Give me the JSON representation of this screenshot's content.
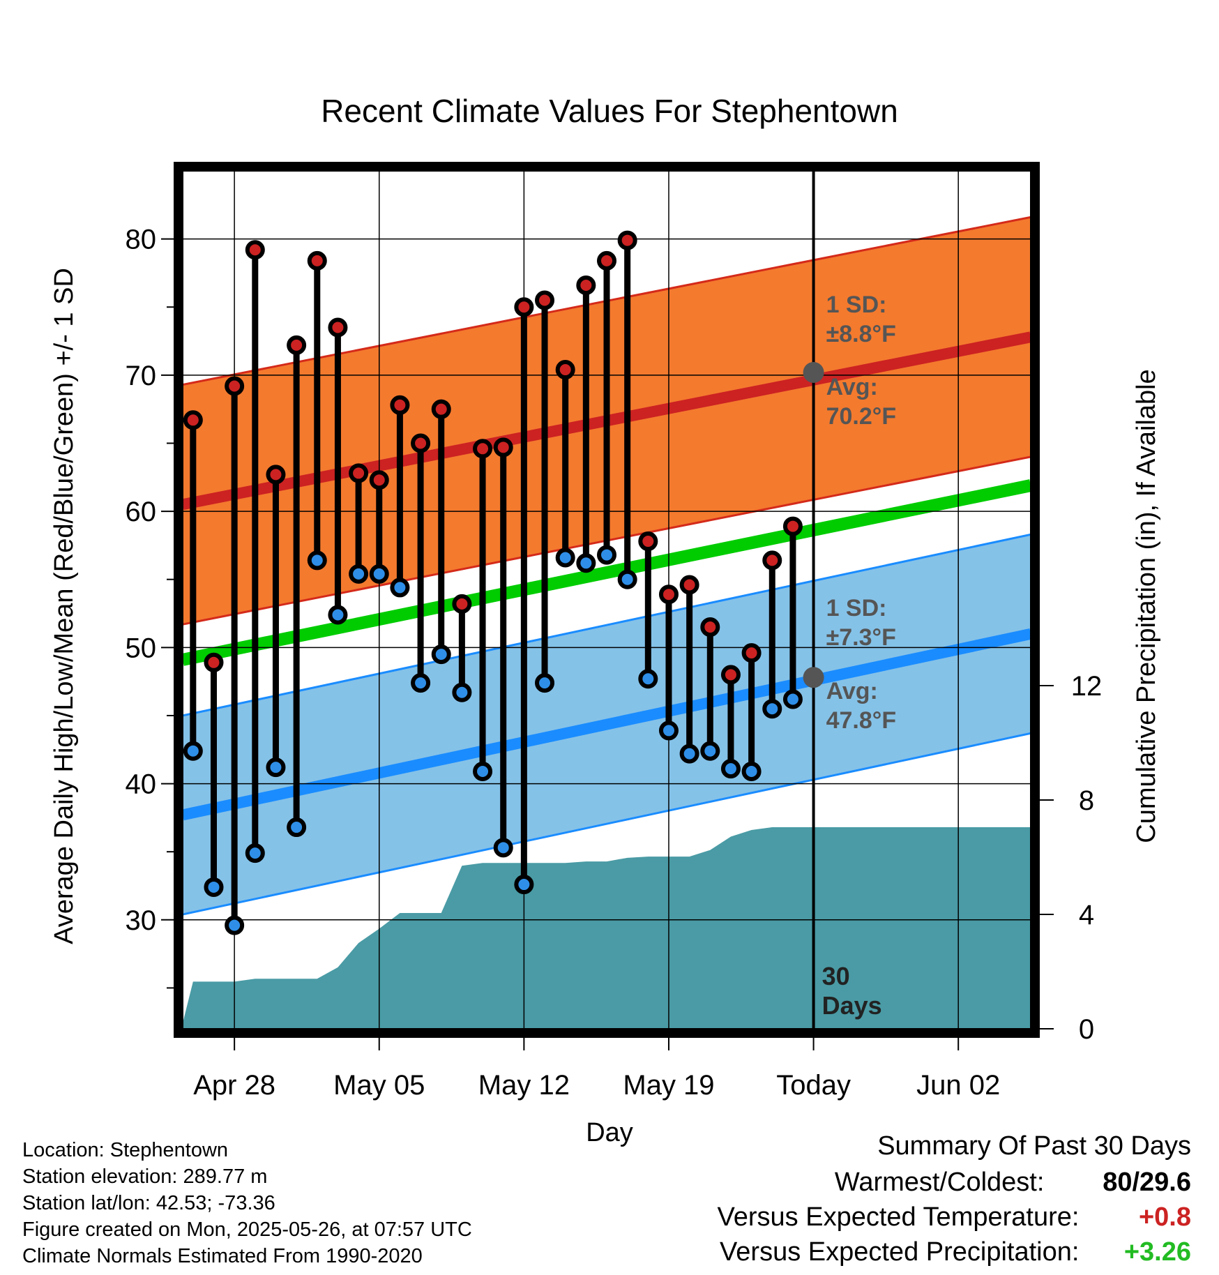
{
  "chart_data": {
    "type": "line",
    "title": "Recent Climate Values For Stephentown",
    "xlabel": "Day",
    "ylabel": "Average Daily High/Low/Mean (Red/Blue/Green) +/- 1 SD",
    "y2label": "Cumulative Precipitation (in), If Available",
    "x_ticks": [
      "Apr 28",
      "May 05",
      "May 12",
      "May 19",
      "Today",
      "Jun 02"
    ],
    "x_tick_days": [
      3,
      10,
      17,
      24,
      31,
      38
    ],
    "xlim_days": [
      0.5,
      41.5
    ],
    "ylim": [
      22,
      85
    ],
    "y_ticks": [
      30,
      40,
      50,
      60,
      70,
      80
    ],
    "y2lim": [
      0,
      30
    ],
    "y2_ticks": [
      0,
      4,
      8,
      12
    ],
    "grid": true,
    "today_day": 31,
    "today_label": "30 Days",
    "series": [
      {
        "name": "High",
        "color": "#cc2222",
        "x": [
          1,
          2,
          3,
          4,
          5,
          6,
          7,
          8,
          9,
          10,
          11,
          12,
          13,
          14,
          15,
          16,
          17,
          18,
          19,
          20,
          21,
          22,
          23,
          24,
          25,
          26,
          27,
          28,
          29,
          30
        ],
        "values": [
          66.7,
          48.9,
          69.2,
          79.2,
          62.7,
          72.2,
          78.4,
          73.5,
          62.8,
          62.3,
          67.8,
          65.0,
          67.5,
          53.2,
          64.6,
          64.7,
          75.0,
          75.5,
          70.4,
          76.6,
          78.4,
          79.9,
          57.8,
          53.9,
          54.6,
          51.5,
          48.0,
          49.6,
          56.4,
          58.9
        ]
      },
      {
        "name": "Low",
        "color": "#2f8fe8",
        "x": [
          1,
          2,
          3,
          4,
          5,
          6,
          7,
          8,
          9,
          10,
          11,
          12,
          13,
          14,
          15,
          16,
          17,
          18,
          19,
          20,
          21,
          22,
          23,
          24,
          25,
          26,
          27,
          28,
          29,
          30
        ],
        "values": [
          42.4,
          32.4,
          29.6,
          34.9,
          41.2,
          36.8,
          56.4,
          52.4,
          55.4,
          55.4,
          54.4,
          47.4,
          49.5,
          46.7,
          40.9,
          35.3,
          32.6,
          47.4,
          56.6,
          56.2,
          56.8,
          55.0,
          47.7,
          43.9,
          42.2,
          42.4,
          41.1,
          40.9,
          45.5,
          46.2
        ]
      },
      {
        "name": "Normal High",
        "color": "#cc2222",
        "x": [
          0.5,
          41.5
        ],
        "values": [
          60.5,
          72.8
        ],
        "sd": 8.8
      },
      {
        "name": "Normal Low",
        "color": "#1a8cff",
        "x": [
          0.5,
          41.5
        ],
        "values": [
          37.7,
          51.0
        ],
        "sd": 7.3
      },
      {
        "name": "Normal Mean",
        "color": "#00cc00",
        "x": [
          0.5,
          41.5
        ],
        "values": [
          49.1,
          61.9
        ]
      },
      {
        "name": "Cumulative Precipitation",
        "color": "#4a9ba5",
        "axis": "y2",
        "x": [
          0.5,
          1,
          2,
          3,
          4,
          5,
          6,
          7,
          8,
          9,
          10,
          11,
          12,
          13,
          14,
          15,
          16,
          17,
          18,
          19,
          20,
          21,
          22,
          23,
          24,
          25,
          26,
          27,
          28,
          29,
          30,
          31,
          41.5
        ],
        "values": [
          0.2,
          1.65,
          1.65,
          1.65,
          1.75,
          1.75,
          1.75,
          1.75,
          2.15,
          3.0,
          3.5,
          4.05,
          4.05,
          4.05,
          5.7,
          5.8,
          5.8,
          5.8,
          5.8,
          5.8,
          5.85,
          5.85,
          5.98,
          6.02,
          6.02,
          6.02,
          6.25,
          6.72,
          6.95,
          7.05,
          7.05,
          7.05,
          7.05
        ]
      }
    ],
    "annotations": {
      "high_sd": "1 SD:",
      "high_sd_value": "±8.8°F",
      "high_avg": "Avg:",
      "high_avg_value": "70.2°F",
      "high_avg_y": 70.2,
      "low_sd": "1 SD:",
      "low_sd_value": "±7.3°F",
      "low_avg": "Avg:",
      "low_avg_value": "47.8°F",
      "low_avg_y": 47.8
    }
  },
  "info": {
    "location": "Location: Stephentown",
    "elevation": "Station elevation: 289.77 m",
    "latlon": "Station lat/lon: 42.53; -73.36",
    "created": "Figure created on Mon, 2025-05-26, at 07:57 UTC",
    "normals": "Climate Normals Estimated From 1990-2020"
  },
  "summary": {
    "title": "Summary Of Past 30 Days",
    "warmest_label": "Warmest/Coldest:",
    "warmest_value": "80/29.6",
    "temp_label": "Versus Expected Temperature:",
    "temp_value": "+0.8",
    "temp_color": "#cc2222",
    "precip_label": "Versus Expected Precipitation:",
    "precip_value": "+3.26",
    "precip_color": "#22bb22"
  }
}
